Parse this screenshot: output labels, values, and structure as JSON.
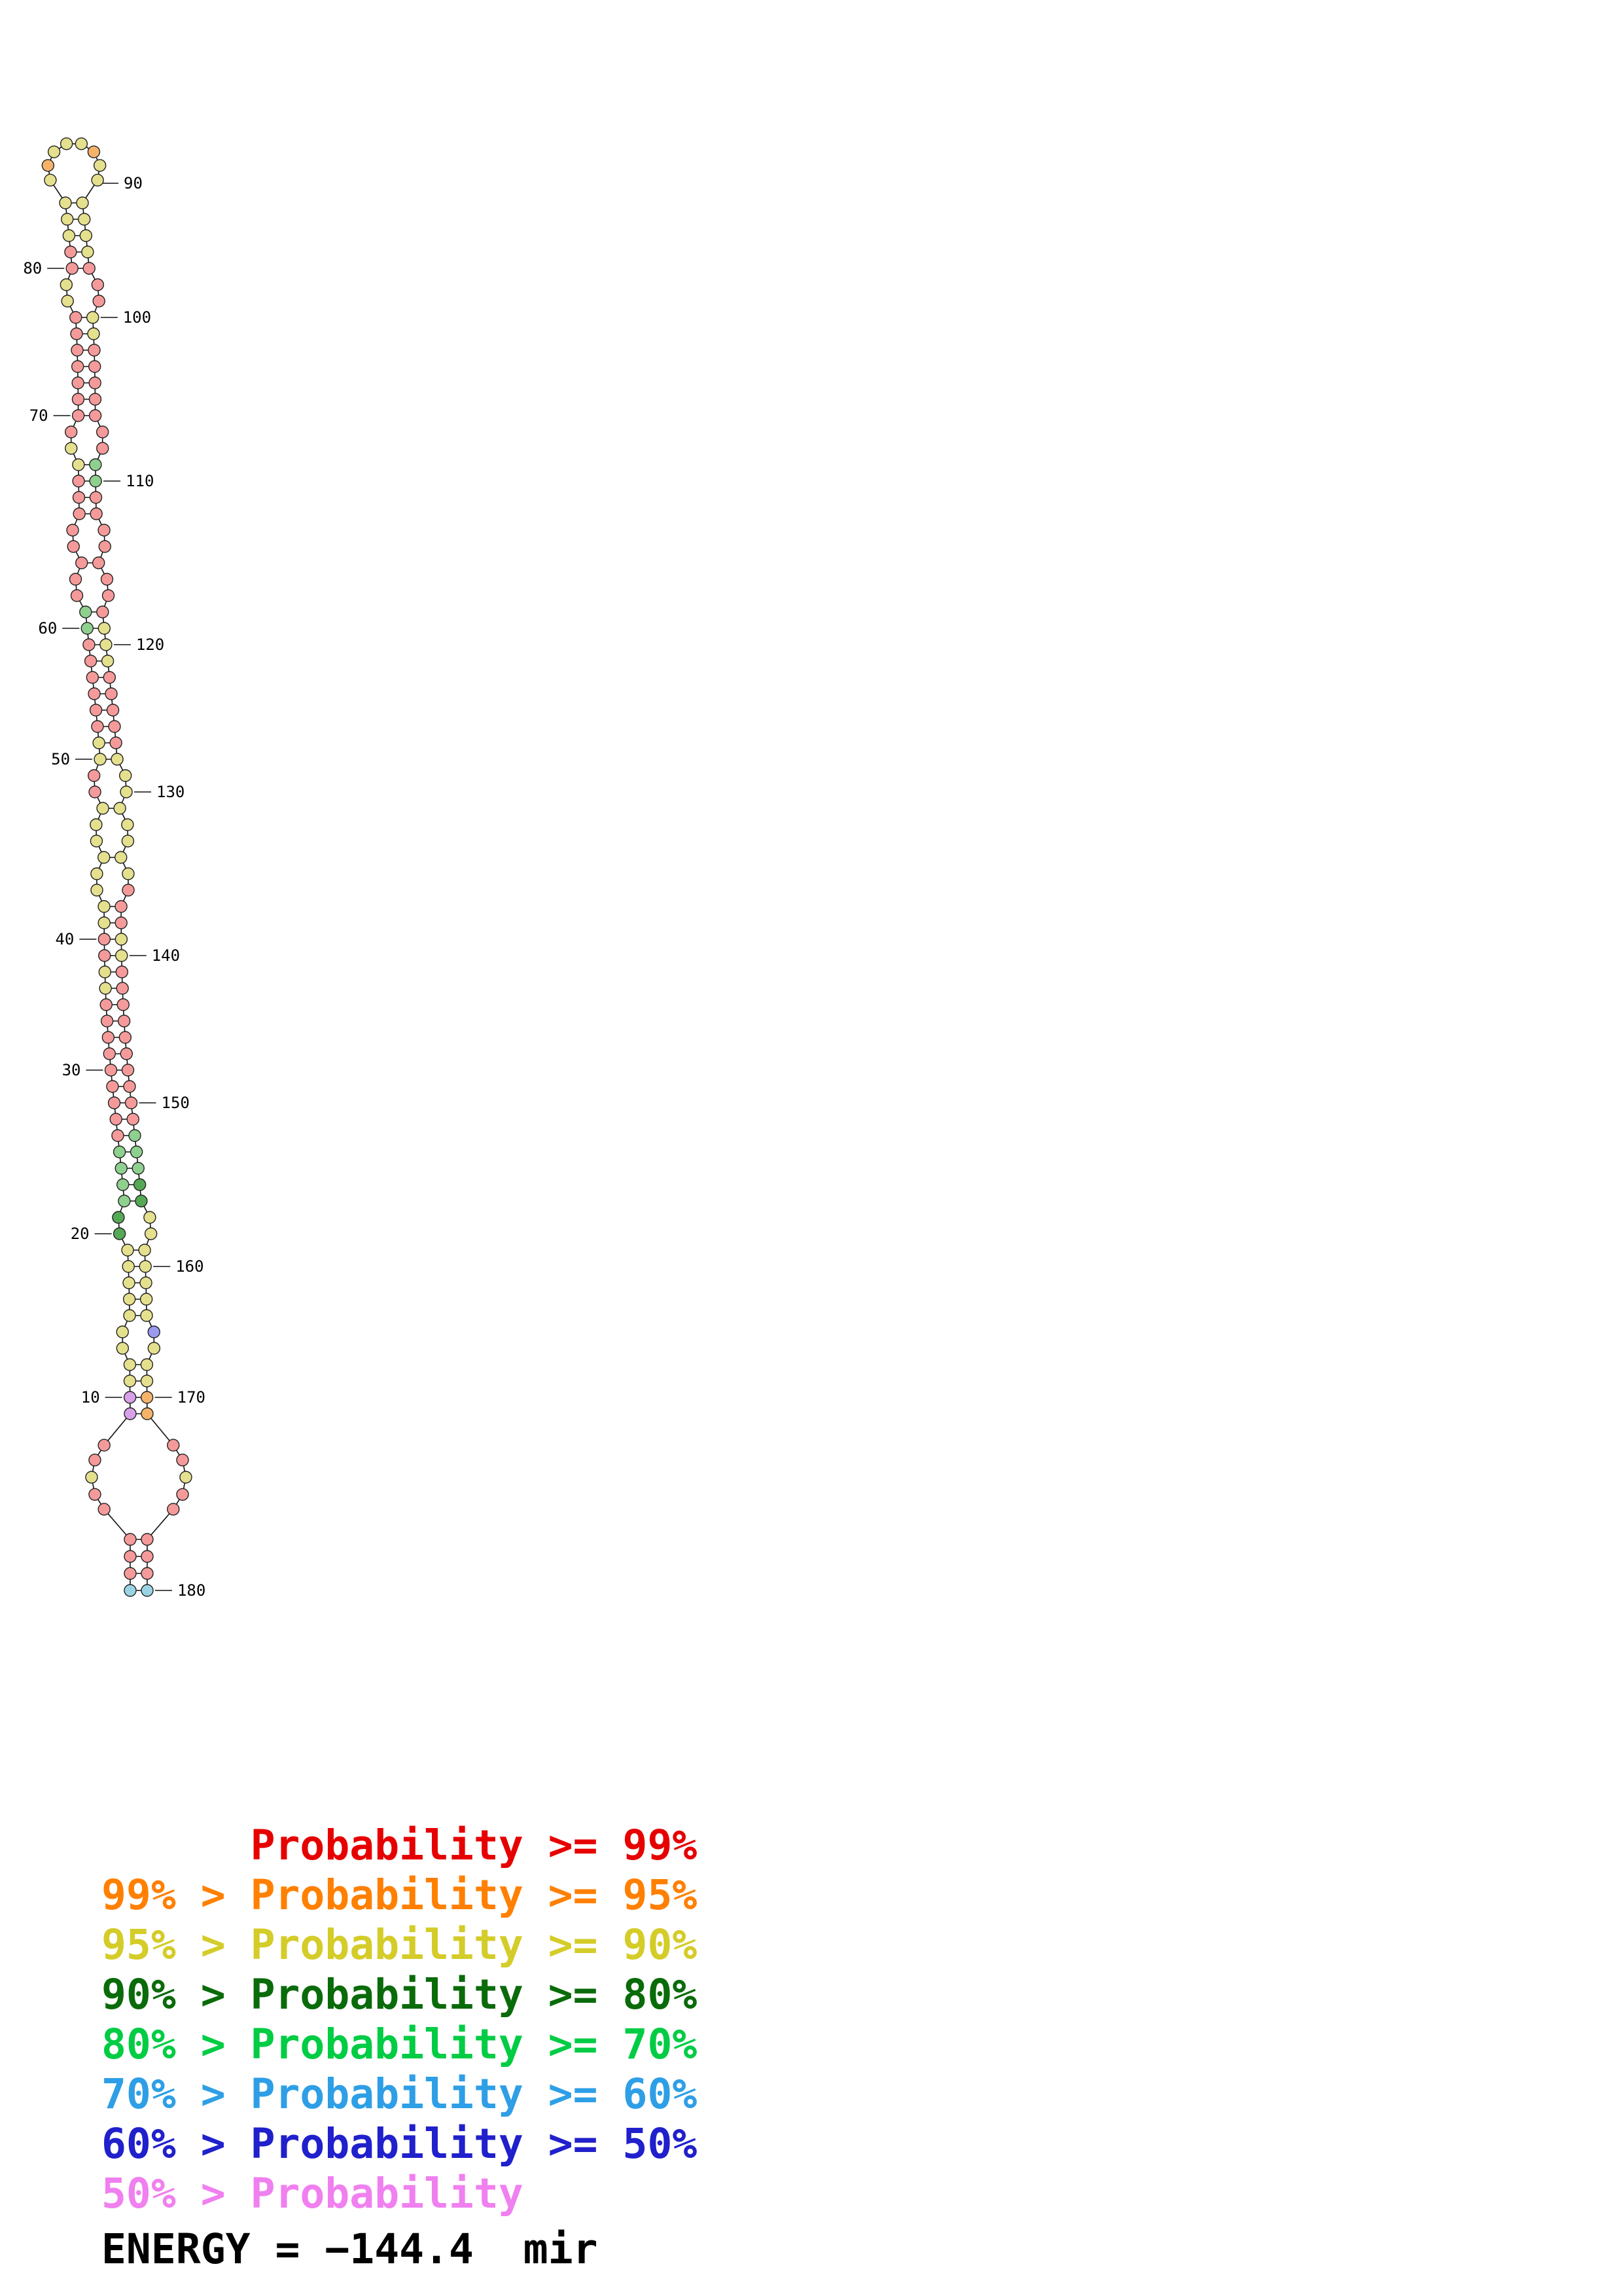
{
  "structure": {
    "palette": {
      "r": "#f59a9a",
      "o": "#f5b36a",
      "y": "#e4e08e",
      "g": "#8fd08f",
      "dg": "#55a855",
      "b": "#9a9aee",
      "c": "#9ad4e4",
      "p": "#d8a0e8"
    },
    "radius": 9,
    "rows": 75,
    "top_loop": [
      "y",
      "o",
      "y",
      "y",
      "y",
      "o",
      "y",
      "y"
    ],
    "left_runs": [
      [
        "y",
        3
      ],
      [
        "r",
        2
      ],
      [
        "y",
        2
      ],
      [
        "r",
        8
      ],
      [
        "y",
        2
      ],
      [
        "r",
        8
      ],
      [
        "g",
        2
      ],
      [
        "r",
        6
      ],
      [
        "y",
        2
      ],
      [
        "r",
        2
      ],
      [
        "y",
        8
      ],
      [
        "r",
        2
      ],
      [
        "y",
        2
      ],
      [
        "r",
        9
      ],
      [
        "g",
        4
      ],
      [
        "dg",
        2
      ],
      [
        "y",
        9
      ],
      [
        "p",
        2
      ]
    ],
    "right_runs": [
      [
        "y",
        4
      ],
      [
        "r",
        3
      ],
      [
        "y",
        2
      ],
      [
        "r",
        7
      ],
      [
        "g",
        2
      ],
      [
        "r",
        8
      ],
      [
        "y",
        3
      ],
      [
        "r",
        5
      ],
      [
        "y",
        8
      ],
      [
        "r",
        3
      ],
      [
        "y",
        2
      ],
      [
        "r",
        10
      ],
      [
        "g",
        3
      ],
      [
        "dg",
        2
      ],
      [
        "y",
        7
      ],
      [
        "b",
        1
      ],
      [
        "y",
        3
      ],
      [
        "o",
        2
      ]
    ],
    "bulge_rows": [
      5,
      6,
      14,
      15,
      20,
      21,
      23,
      24,
      35,
      36,
      38,
      39,
      41,
      42,
      62,
      63,
      69,
      70
    ],
    "bottom_loop": [
      "r",
      "r",
      "y",
      "r",
      "r",
      "r",
      "r",
      "y",
      "r",
      "r"
    ],
    "term_left": [
      "r",
      "r",
      "r",
      "c"
    ],
    "term_right": [
      "r",
      "r",
      "r",
      "c"
    ],
    "labels": [
      {
        "text": "90",
        "side": "loop"
      },
      {
        "text": "80",
        "side": "left",
        "row": 4
      },
      {
        "text": "100",
        "side": "right",
        "row": 7
      },
      {
        "text": "70",
        "side": "left",
        "row": 13
      },
      {
        "text": "110",
        "side": "right",
        "row": 17
      },
      {
        "text": "60",
        "side": "left",
        "row": 26
      },
      {
        "text": "120",
        "side": "right",
        "row": 27
      },
      {
        "text": "50",
        "side": "left",
        "row": 34
      },
      {
        "text": "130",
        "side": "right",
        "row": 36
      },
      {
        "text": "40",
        "side": "left",
        "row": 45
      },
      {
        "text": "140",
        "side": "right",
        "row": 46
      },
      {
        "text": "30",
        "side": "left",
        "row": 53
      },
      {
        "text": "150",
        "side": "right",
        "row": 55
      },
      {
        "text": "20",
        "side": "left",
        "row": 63
      },
      {
        "text": "160",
        "side": "right",
        "row": 65
      },
      {
        "text": "10",
        "side": "left",
        "row": 73
      },
      {
        "text": "170",
        "side": "right",
        "row": 73
      },
      {
        "text": "180",
        "side": "end"
      }
    ]
  },
  "legend": {
    "lines": [
      {
        "text": "      Probability >= 99%",
        "color": "#e60000"
      },
      {
        "text": "99% > Probability >= 95%",
        "color": "#ff8000"
      },
      {
        "text": "95% > Probability >= 90%",
        "color": "#d4cc28"
      },
      {
        "text": "90% > Probability >= 80%",
        "color": "#0a6b0a"
      },
      {
        "text": "80% > Probability >= 70%",
        "color": "#00cc44"
      },
      {
        "text": "70% > Probability >= 60%",
        "color": "#2e9fe6"
      },
      {
        "text": "60% > Probability >= 50%",
        "color": "#2020cc"
      },
      {
        "text": "50% > Probability",
        "color": "#f080f0"
      }
    ]
  },
  "energy": {
    "text": "ENERGY = −144.4  mir"
  }
}
